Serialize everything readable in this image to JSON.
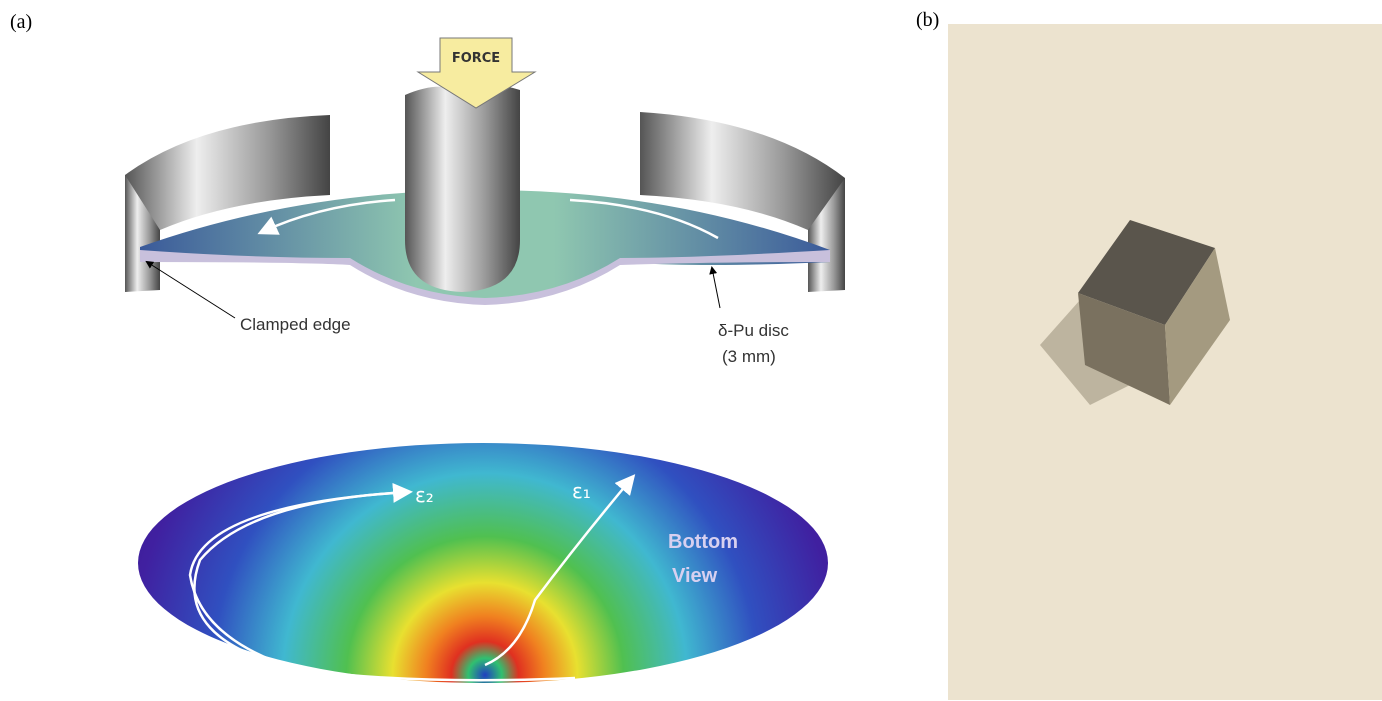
{
  "panel_a": {
    "label": "(a)",
    "force": "FORCE",
    "clamped_edge": "Clamped edge",
    "disc": "δ-Pu disc",
    "disc_size": "(3 mm)",
    "strain_2": "ε₂",
    "strain_1": "ε₁",
    "view_1": "Bottom",
    "view_2": "View"
  },
  "panel_b": {
    "label": "(b)"
  }
}
